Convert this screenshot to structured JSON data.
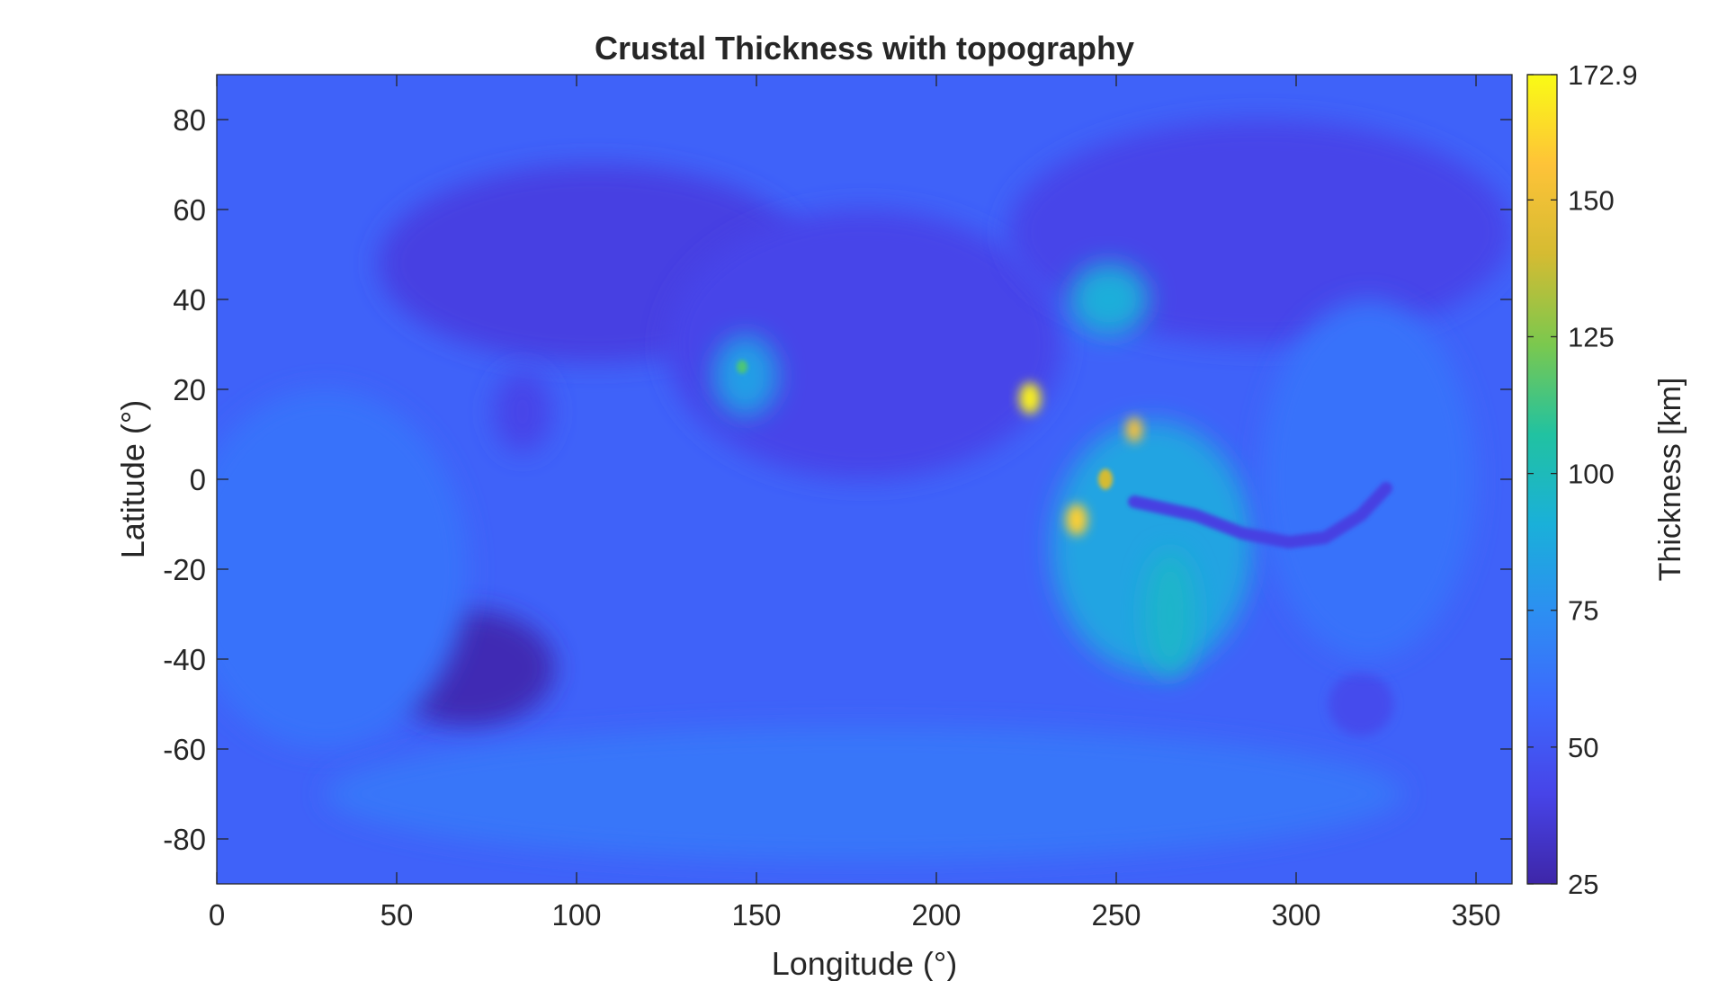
{
  "chart_data": {
    "type": "heatmap",
    "title": "Crustal Thickness with topography",
    "xlabel": "Longitude (°)",
    "ylabel": "Latitude (°)",
    "xlim": [
      0,
      360
    ],
    "ylim": [
      -90,
      90
    ],
    "x_ticks": [
      0,
      50,
      100,
      150,
      200,
      250,
      300,
      350
    ],
    "y_ticks": [
      -80,
      -60,
      -40,
      -20,
      0,
      20,
      40,
      60,
      80
    ],
    "colorbar": {
      "label": "Thickness [km]",
      "min": 25,
      "max": 172.9,
      "ticks": [
        25,
        50,
        75,
        100,
        125,
        150,
        172.9
      ],
      "tick_labels": [
        "25",
        "50",
        "75",
        "100",
        "125",
        "150",
        "172.9"
      ],
      "colormap": "parula",
      "colormap_stops": [
        "#3e26a8",
        "#4744e8",
        "#3d68fd",
        "#2d8ef2",
        "#1ab0d9",
        "#21c2a1",
        "#7bc84e",
        "#d5bb32",
        "#fec338",
        "#f9fb15"
      ]
    },
    "grid": false,
    "legend": "none",
    "background_thickness_km": 55,
    "features": [
      {
        "lon": 70,
        "lat": -42,
        "rx": 24,
        "ry": 13,
        "value": 28
      },
      {
        "lon": 318,
        "lat": -50,
        "rx": 9,
        "ry": 7,
        "value": 45
      },
      {
        "lon": 105,
        "lat": 48,
        "rx": 60,
        "ry": 22,
        "value": 40
      },
      {
        "lon": 180,
        "lat": 30,
        "rx": 55,
        "ry": 30,
        "value": 42
      },
      {
        "lon": 290,
        "lat": 55,
        "rx": 70,
        "ry": 25,
        "value": 42
      },
      {
        "lon": 85,
        "lat": 15,
        "rx": 8,
        "ry": 9,
        "value": 42
      },
      {
        "lon": 260,
        "lat": -15,
        "rx": 28,
        "ry": 28,
        "value": 85
      },
      {
        "lon": 248,
        "lat": 40,
        "rx": 11,
        "ry": 8,
        "value": 90
      },
      {
        "lon": 147,
        "lat": 23,
        "rx": 9,
        "ry": 9,
        "value": 82
      },
      {
        "lon": 146,
        "lat": 25,
        "rx": 1.5,
        "ry": 1.5,
        "value": 115
      },
      {
        "lon": 226,
        "lat": 18,
        "rx": 3,
        "ry": 3.5,
        "value": 170
      },
      {
        "lon": 255,
        "lat": 11,
        "rx": 2.3,
        "ry": 2.8,
        "value": 155
      },
      {
        "lon": 247,
        "lat": 0,
        "rx": 2,
        "ry": 2.3,
        "value": 140
      },
      {
        "lon": 239,
        "lat": -9,
        "rx": 3,
        "ry": 3.5,
        "value": 160
      },
      {
        "lon": 265,
        "lat": -30,
        "rx": 7,
        "ry": 14,
        "value": 95
      },
      {
        "lon": 320,
        "lat": 0,
        "rx": 30,
        "ry": 40,
        "value": 62
      },
      {
        "lon": 30,
        "lat": -20,
        "rx": 40,
        "ry": 40,
        "value": 62
      },
      {
        "lon": 180,
        "lat": -70,
        "rx": 150,
        "ry": 15,
        "value": 64
      }
    ],
    "valley": {
      "points": [
        [
          255,
          -5
        ],
        [
          272,
          -8
        ],
        [
          285,
          -12
        ],
        [
          298,
          -14
        ],
        [
          308,
          -13
        ],
        [
          318,
          -8
        ],
        [
          325,
          -2
        ]
      ],
      "value": 40
    }
  }
}
